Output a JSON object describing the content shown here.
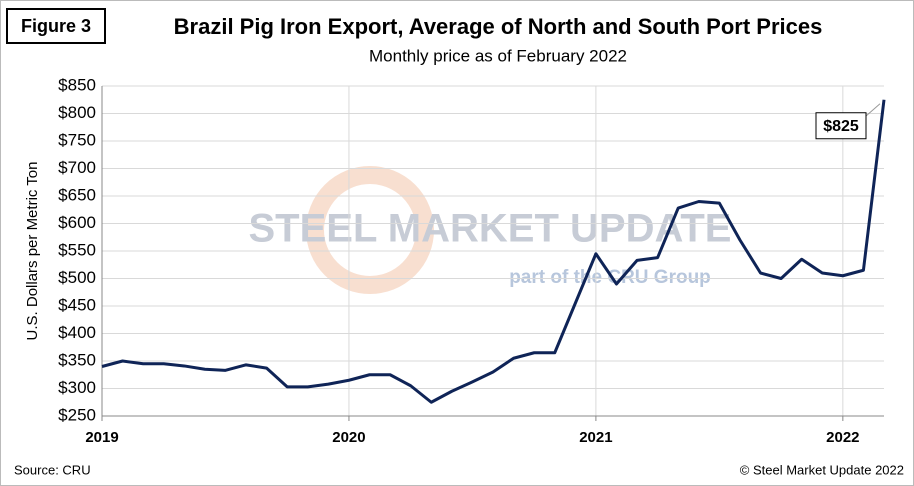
{
  "chart_data": {
    "type": "line",
    "figure_label": "Figure 3",
    "title": "Brazil Pig Iron Export, Average of North and South Port Prices",
    "subtitle": "Monthly price as of February 2022",
    "y_label": "U.S. Dollars per Metric Ton",
    "watermark": "STEEL MARKET UPDATE",
    "watermark_sub": "part of the CRU Group",
    "source": "Source: CRU",
    "copyright": "© Steel Market Update 2022",
    "categories": [
      "2019",
      null,
      null,
      null,
      null,
      null,
      null,
      null,
      null,
      null,
      null,
      null,
      "2020",
      null,
      null,
      null,
      null,
      null,
      null,
      null,
      null,
      null,
      null,
      null,
      "2021",
      null,
      null,
      null,
      null,
      null,
      null,
      null,
      null,
      null,
      null,
      null,
      "2022",
      null,
      null
    ],
    "series": [
      {
        "name": "Brazil Pig Iron Export Price",
        "color": "#0f2457",
        "values": [
          340,
          350,
          345,
          345,
          341,
          335,
          333,
          343,
          337,
          303,
          303,
          308,
          315,
          325,
          325,
          305,
          275,
          295,
          312,
          330,
          355,
          365,
          365,
          455,
          545,
          490,
          533,
          538,
          628,
          640,
          637,
          570,
          510,
          500,
          535,
          510,
          505,
          515,
          825
        ],
        "value_labels": {
          "38": "$825"
        }
      }
    ],
    "ylim": [
      250,
      850
    ],
    "yticks": [
      {
        "value": 250,
        "label": "$250"
      },
      {
        "value": 300,
        "label": "$300"
      },
      {
        "value": 350,
        "label": "$350"
      },
      {
        "value": 400,
        "label": "$400"
      },
      {
        "value": 450,
        "label": "$450"
      },
      {
        "value": 500,
        "label": "$500"
      },
      {
        "value": 550,
        "label": "$550"
      },
      {
        "value": 600,
        "label": "$600"
      },
      {
        "value": 650,
        "label": "$650"
      },
      {
        "value": 700,
        "label": "$700"
      },
      {
        "value": 750,
        "label": "$750"
      },
      {
        "value": 800,
        "label": "$800"
      },
      {
        "value": 850,
        "label": "$850"
      }
    ],
    "grid": true
  }
}
